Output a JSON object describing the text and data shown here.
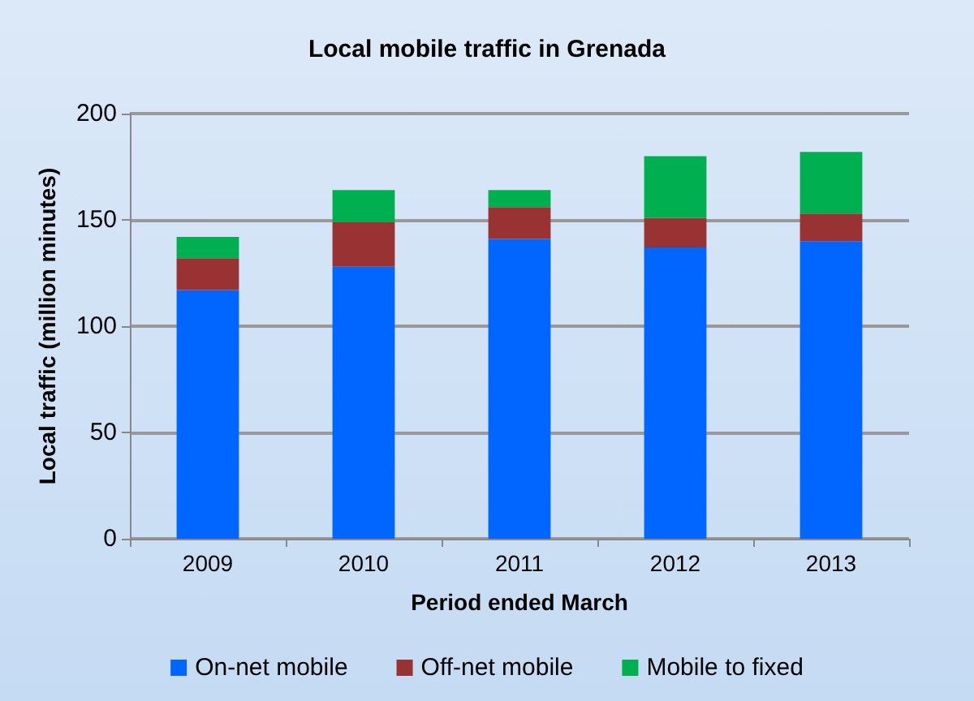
{
  "chart_data": {
    "type": "bar",
    "stacked": true,
    "title": "Local mobile traffic in Grenada",
    "xlabel": "Period ended March",
    "ylabel": "Local traffic (million minutes)",
    "categories": [
      "2009",
      "2010",
      "2011",
      "2012",
      "2013"
    ],
    "series": [
      {
        "name": "On-net mobile",
        "color": "#0066ff",
        "values": [
          117,
          128,
          141,
          137,
          140
        ]
      },
      {
        "name": "Off-net mobile",
        "color": "#993333",
        "values": [
          15,
          21,
          15,
          14,
          13
        ]
      },
      {
        "name": "Mobile to fixed",
        "color": "#00b050",
        "values": [
          10,
          15,
          8,
          29,
          29
        ]
      }
    ],
    "ylim": [
      0,
      200
    ],
    "yticks": [
      0,
      50,
      100,
      150,
      200
    ],
    "grid": "y",
    "legend": "bottom"
  }
}
